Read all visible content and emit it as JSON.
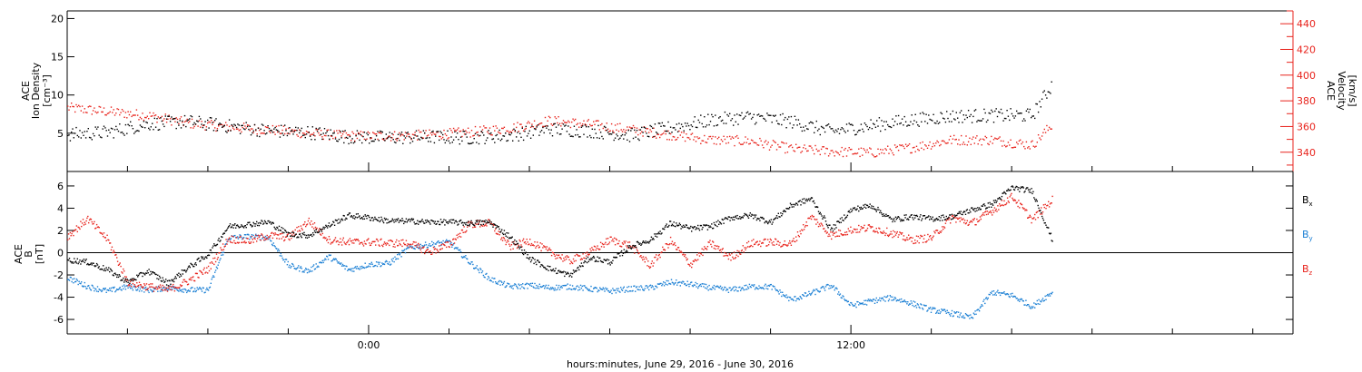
{
  "x_axis": {
    "title": "hours:minutes, June 29, 2016 - June 30, 2016",
    "ticks": [
      {
        "label": "0:00",
        "hours": 0
      },
      {
        "label": "12:00",
        "hours": 12
      }
    ],
    "range_hours": [
      -7.5,
      23.0
    ]
  },
  "top_panel": {
    "left_label_lines": [
      "ACE",
      "Ion Density"
    ],
    "left_unit": "[cm⁻³]",
    "right_label_lines": [
      "ACE",
      "Velocity"
    ],
    "right_unit": "[km/s]",
    "left_ticks": [
      "5",
      "10",
      "15",
      "20"
    ],
    "right_ticks": [
      "340",
      "360",
      "380",
      "400",
      "420",
      "440"
    ]
  },
  "bottom_panel": {
    "label_lines": [
      "ACE",
      "B"
    ],
    "unit": "[nT]",
    "ticks": [
      "-6",
      "-4",
      "-2",
      "0",
      "2",
      "4",
      "6"
    ],
    "legend": [
      {
        "name": "B",
        "sub": "x",
        "color": "#000000"
      },
      {
        "name": "B",
        "sub": "y",
        "color": "#1a7fd4"
      },
      {
        "name": "B",
        "sub": "z",
        "color": "#e8231c"
      }
    ]
  },
  "colors": {
    "black": "#000000",
    "red": "#e8231c",
    "blue": "#1a7fd4"
  },
  "chart_data": [
    {
      "type": "scatter",
      "panel": "top",
      "xlabel": "hours:minutes, June 29, 2016 - June 30, 2016",
      "ylabel": "ACE Ion Density [cm^-3]",
      "y2label": "ACE Velocity [km/s]",
      "xlim": [
        -7.5,
        23.0
      ],
      "ylim": [
        0,
        21
      ],
      "y2lim": [
        325,
        450
      ],
      "grid": false,
      "series": [
        {
          "name": "Ion Density",
          "axis": "left",
          "color": "#000000",
          "x": [
            -7.5,
            -6.5,
            -5.5,
            -4.5,
            -3.5,
            -2.5,
            -1.5,
            -0.5,
            0.5,
            1.5,
            2.5,
            3.5,
            4.5,
            5.5,
            6.5,
            7.5,
            8.5,
            9.5,
            10.5,
            11.5,
            12.5,
            13.5,
            14.5,
            15.5,
            16.5,
            17.0
          ],
          "values": [
            4.9,
            5.2,
            6.3,
            6.6,
            6.0,
            5.4,
            5.2,
            4.6,
            4.5,
            4.6,
            4.5,
            4.8,
            5.6,
            5.4,
            4.8,
            5.8,
            6.8,
            7.2,
            6.6,
            5.3,
            6.1,
            6.8,
            7.3,
            7.4,
            7.4,
            11.5
          ]
        },
        {
          "name": "Velocity",
          "axis": "right",
          "color": "#e8231c",
          "x": [
            -7.5,
            -6.5,
            -5.5,
            -4.5,
            -3.5,
            -2.5,
            -1.5,
            -0.5,
            0.5,
            1.5,
            2.5,
            3.5,
            4.5,
            5.5,
            6.5,
            7.5,
            8.5,
            9.5,
            10.5,
            11.5,
            12.5,
            13.5,
            14.5,
            15.5,
            16.5,
            17.0
          ],
          "values": [
            375,
            372,
            369,
            363,
            360,
            358,
            355,
            353,
            353,
            354,
            356,
            359,
            365,
            362,
            358,
            354,
            350,
            349,
            343,
            341,
            340,
            344,
            350,
            350,
            346,
            362
          ]
        }
      ]
    },
    {
      "type": "scatter",
      "panel": "bottom",
      "ylabel": "ACE B [nT]",
      "xlim": [
        -7.5,
        23.0
      ],
      "ylim": [
        -7.3,
        7.3
      ],
      "grid": false,
      "series": [
        {
          "name": "Bx",
          "color": "#000000",
          "x": [
            -7.5,
            -7.0,
            -6.5,
            -6.0,
            -5.5,
            -5.0,
            -4.5,
            -4.0,
            -3.5,
            -3.0,
            -2.5,
            -2.0,
            -1.5,
            -1.0,
            -0.5,
            0.0,
            0.5,
            1.0,
            1.5,
            2.0,
            2.5,
            3.0,
            3.5,
            4.0,
            4.5,
            5.0,
            5.5,
            6.0,
            6.5,
            7.0,
            7.5,
            8.0,
            8.5,
            9.0,
            9.5,
            10.0,
            10.5,
            11.0,
            11.5,
            12.0,
            12.5,
            13.0,
            13.5,
            14.0,
            14.5,
            15.0,
            15.5,
            16.0,
            16.5,
            17.0
          ],
          "values": [
            -0.6,
            -0.8,
            -1.5,
            -2.6,
            -1.6,
            -2.7,
            -1.3,
            -0.1,
            2.4,
            2.6,
            2.8,
            1.7,
            1.6,
            2.5,
            3.4,
            3.2,
            2.9,
            2.9,
            2.8,
            2.8,
            2.7,
            2.8,
            1.5,
            -0.5,
            -1.4,
            -2.0,
            -0.4,
            -0.8,
            0.6,
            1.2,
            2.7,
            2.2,
            2.4,
            3.2,
            3.4,
            2.8,
            4.3,
            4.9,
            2.1,
            3.9,
            4.3,
            3.0,
            3.3,
            3.1,
            3.3,
            3.9,
            4.4,
            5.9,
            5.6,
            1.2
          ]
        },
        {
          "name": "By",
          "color": "#1a7fd4",
          "x": [
            -7.5,
            -7.0,
            -6.5,
            -6.0,
            -5.5,
            -5.0,
            -4.5,
            -4.0,
            -3.5,
            -3.0,
            -2.5,
            -2.0,
            -1.5,
            -1.0,
            -0.5,
            0.0,
            0.5,
            1.0,
            1.5,
            2.0,
            2.5,
            3.0,
            3.5,
            4.0,
            4.5,
            5.0,
            5.5,
            6.0,
            6.5,
            7.0,
            7.5,
            8.0,
            8.5,
            9.0,
            9.5,
            10.0,
            10.5,
            11.0,
            11.5,
            12.0,
            12.5,
            13.0,
            13.5,
            14.0,
            14.5,
            15.0,
            15.5,
            16.0,
            16.5,
            17.0
          ],
          "values": [
            -2.2,
            -3.0,
            -3.4,
            -3.0,
            -3.3,
            -3.1,
            -3.3,
            -3.3,
            1.4,
            1.5,
            1.4,
            -1.1,
            -1.6,
            -0.3,
            -1.5,
            -1.0,
            -0.9,
            0.5,
            0.8,
            1.0,
            -0.8,
            -2.3,
            -3.0,
            -2.9,
            -3.1,
            -3.0,
            -3.2,
            -3.4,
            -3.2,
            -3.1,
            -2.6,
            -2.8,
            -3.1,
            -3.3,
            -3.0,
            -3.0,
            -4.2,
            -3.6,
            -2.9,
            -4.7,
            -4.3,
            -4.0,
            -4.5,
            -5.1,
            -5.4,
            -5.8,
            -3.5,
            -3.8,
            -4.8,
            -3.5
          ]
        },
        {
          "name": "Bz",
          "color": "#e8231c",
          "x": [
            -7.5,
            -7.0,
            -6.5,
            -6.0,
            -5.5,
            -5.0,
            -4.5,
            -4.0,
            -3.5,
            -3.0,
            -2.5,
            -2.0,
            -1.5,
            -1.0,
            -0.5,
            0.0,
            0.5,
            1.0,
            1.5,
            2.0,
            2.5,
            3.0,
            3.5,
            4.0,
            4.5,
            5.0,
            5.5,
            6.0,
            6.5,
            7.0,
            7.5,
            8.0,
            8.5,
            9.0,
            9.5,
            10.0,
            10.5,
            11.0,
            11.5,
            12.0,
            12.5,
            13.0,
            13.5,
            14.0,
            14.5,
            15.0,
            15.5,
            16.0,
            16.5,
            17.0
          ],
          "values": [
            1.5,
            3.1,
            1.2,
            -2.6,
            -3.0,
            -3.3,
            -2.5,
            -1.4,
            1.3,
            1.1,
            1.6,
            1.4,
            2.9,
            1.2,
            1.0,
            1.0,
            0.9,
            0.9,
            0.1,
            0.8,
            2.6,
            2.7,
            0.6,
            1.1,
            0.1,
            -0.7,
            0.1,
            1.2,
            0.7,
            -1.1,
            1.1,
            -1.0,
            0.9,
            -0.4,
            0.9,
            1.0,
            0.8,
            3.3,
            1.6,
            2.1,
            2.3,
            1.8,
            1.2,
            1.4,
            3.2,
            2.7,
            3.8,
            5.1,
            3.0,
            4.8
          ]
        }
      ]
    }
  ]
}
